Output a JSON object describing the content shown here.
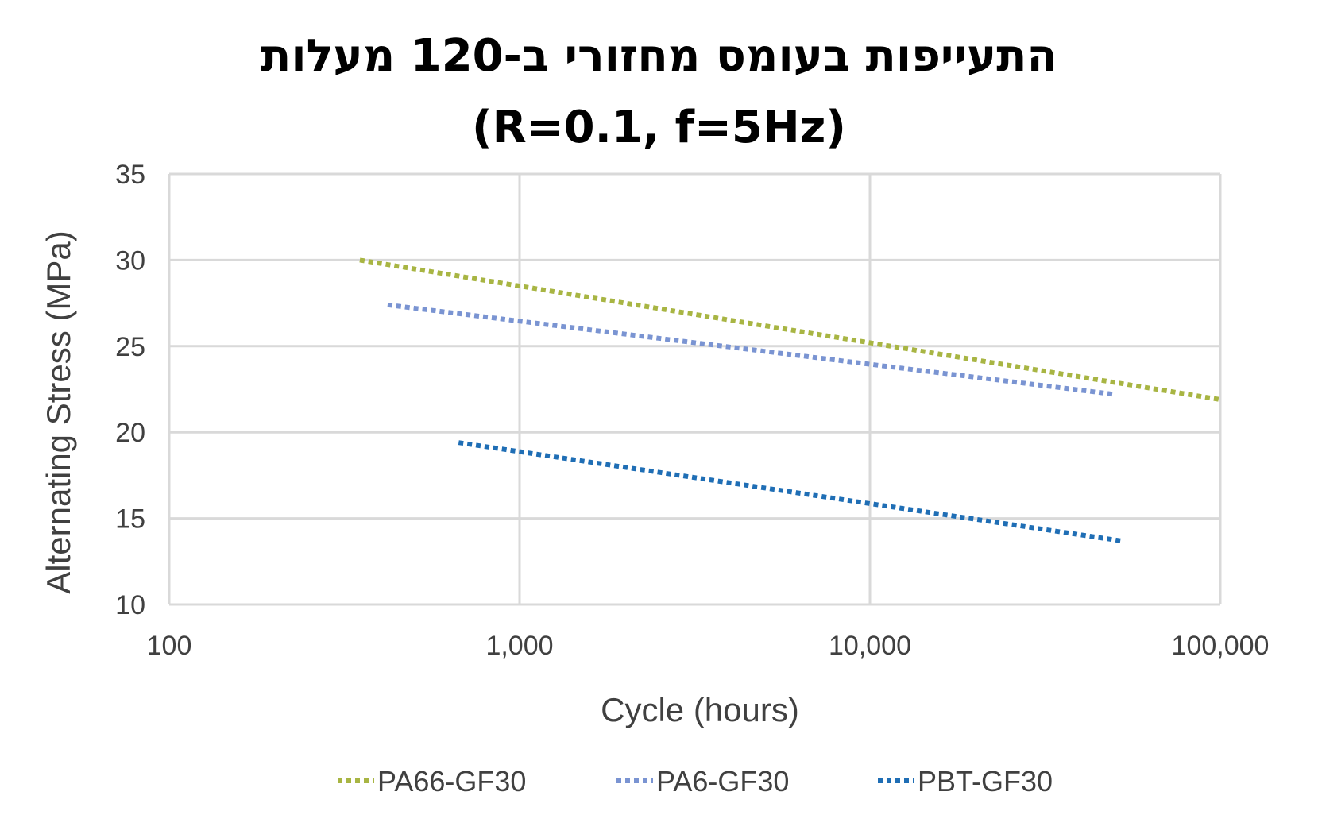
{
  "title": {
    "line1": "התעייפות בעומס מחזורי ב-120 מעלות",
    "line2": "(R=0.1, f=5Hz)"
  },
  "chart_data": {
    "type": "line",
    "title": "התעייפות בעומס מחזורי ב-120 מעלות (R=0.1, f=5Hz)",
    "xlabel": "Cycle (hours)",
    "ylabel": "Alternating  Stress (MPa)",
    "xscale": "log",
    "xlim": [
      100,
      100000
    ],
    "ylim": [
      10,
      35
    ],
    "x_ticks": [
      100,
      1000,
      10000,
      100000
    ],
    "x_tick_labels": [
      "100",
      "1,000",
      "10,000",
      "100,000"
    ],
    "y_ticks": [
      10,
      15,
      20,
      25,
      30,
      35
    ],
    "y_tick_labels": [
      "10",
      "15",
      "20",
      "25",
      "30",
      "35"
    ],
    "grid": true,
    "legend": "bottom",
    "series": [
      {
        "name": "PA66-GF30",
        "color": "#a8b543",
        "style": "dotted",
        "x": [
          350,
          100000
        ],
        "y": [
          30.0,
          21.9
        ]
      },
      {
        "name": "PA6-GF30",
        "color": "#7a94d2",
        "style": "dotted",
        "x": [
          420,
          50000
        ],
        "y": [
          27.4,
          22.2
        ]
      },
      {
        "name": "PBT-GF30",
        "color": "#1f6eb5",
        "style": "dotted",
        "x": [
          670,
          52000
        ],
        "y": [
          19.4,
          13.7
        ]
      }
    ]
  }
}
